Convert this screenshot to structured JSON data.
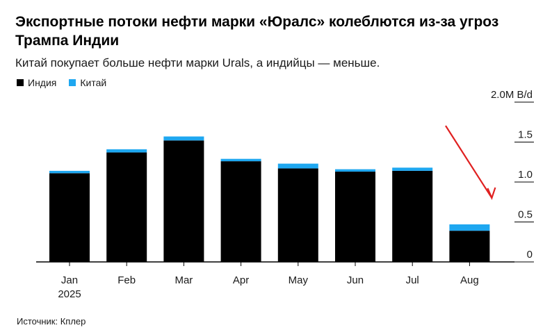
{
  "title": "Экспортные потоки нефти марки «Юралс» колеблются из-за угроз Трампа Индии",
  "subtitle": "Китай покупает больше нефти марки Urals, а индийцы — меньше.",
  "source": "Источник: Кплер",
  "colors": {
    "india": "#000000",
    "china": "#1ea7f0",
    "arrow": "#e02020"
  },
  "chart_data": {
    "type": "bar",
    "stacked": true,
    "categories": [
      "Jan",
      "Feb",
      "Mar",
      "Apr",
      "May",
      "Jun",
      "Jul",
      "Aug"
    ],
    "category_sublabels": [
      "2025",
      "",
      "",
      "",
      "",
      "",
      "",
      ""
    ],
    "series": [
      {
        "name": "Индия",
        "values": [
          1.11,
          1.37,
          1.52,
          1.26,
          1.17,
          1.13,
          1.14,
          0.39
        ]
      },
      {
        "name": "Китай",
        "values": [
          0.03,
          0.04,
          0.05,
          0.03,
          0.06,
          0.03,
          0.04,
          0.08
        ]
      }
    ],
    "ylim": [
      0,
      2.0
    ],
    "yticks": [
      {
        "value": 0,
        "label": "0"
      },
      {
        "value": 0.5,
        "label": "0.5"
      },
      {
        "value": 1.0,
        "label": "1.0"
      },
      {
        "value": 1.5,
        "label": "1.5"
      },
      {
        "value": 2.0,
        "label": "2.0M B/d"
      }
    ],
    "axis_position": "right",
    "legend_position": "top-left",
    "annotation": {
      "type": "arrow",
      "target_category": "Aug"
    }
  }
}
